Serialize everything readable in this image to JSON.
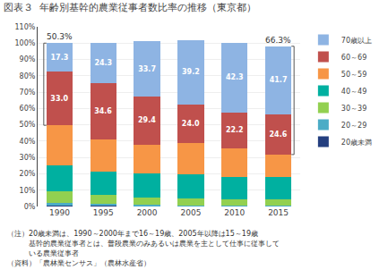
{
  "chart_data": {
    "type": "bar",
    "stacked": true,
    "title": "図表３  年齢別基幹的農業従事者数比率の推移（東京都）",
    "categories": [
      "1990",
      "1995",
      "2000",
      "2005",
      "2010",
      "2015"
    ],
    "series": [
      {
        "name": "20歳未満",
        "color": "#243f7f",
        "values": [
          0.4,
          0.3,
          0.2,
          0.1,
          0.1,
          0.1
        ]
      },
      {
        "name": "20～29",
        "color": "#4bacc6",
        "values": [
          1.8,
          1.3,
          0.8,
          0.6,
          0.5,
          0.5
        ]
      },
      {
        "name": "30～39",
        "color": "#92d050",
        "values": [
          6.9,
          5.6,
          4.7,
          4.3,
          3.7,
          3.8
        ]
      },
      {
        "name": "40～49",
        "color": "#00b0a0",
        "values": [
          15.9,
          14.3,
          14.7,
          14.8,
          13.5,
          13.8
        ]
      },
      {
        "name": "50～59",
        "color": "#f79646",
        "values": [
          24.7,
          19.6,
          17.5,
          18.8,
          17.7,
          13.6
        ]
      },
      {
        "name": "60～69",
        "color": "#c0504d",
        "values": [
          33.0,
          34.6,
          29.4,
          24.0,
          22.2,
          24.6
        ],
        "value_labels": [
          "33.0",
          "34.6",
          "29.4",
          "24.0",
          "22.2",
          "24.6"
        ],
        "data_labels": true
      },
      {
        "name": "70歳以上",
        "color": "#8eb4e3",
        "values": [
          17.3,
          24.3,
          33.7,
          39.2,
          42.3,
          41.7
        ],
        "data_labels": true
      }
    ],
    "ylim": [
      0,
      110
    ],
    "yticks": [
      {
        "value": 0,
        "label": "0%"
      },
      {
        "value": 10,
        "label": "10%"
      },
      {
        "value": 20,
        "label": "20%"
      },
      {
        "value": 30,
        "label": "30%"
      },
      {
        "value": 40,
        "label": "40%"
      },
      {
        "value": 50,
        "label": "50%"
      },
      {
        "value": 60,
        "label": "60%"
      },
      {
        "value": 70,
        "label": "70%"
      },
      {
        "value": 80,
        "label": "80%"
      },
      {
        "value": 90,
        "label": "90%"
      },
      {
        "value": 100,
        "label": "100%"
      },
      {
        "value": 110,
        "label": "110%"
      }
    ],
    "grid": true,
    "legend": "right",
    "annotations": [
      {
        "text": "50.3%",
        "category": "1990",
        "series": [
          "60～69",
          "70歳以上"
        ]
      },
      {
        "text": "66.3%",
        "category": "2015",
        "series": [
          "60～69",
          "70歳以上"
        ]
      }
    ],
    "notes": [
      "（注）20歳未満は、1990～2000年まで16～19歳、2005年以降は15～19歳",
      "　　　基幹的農業従事者とは、普段農業のみあるいは農業を主として仕事に従事して",
      "　　　いる農業従事者",
      "（資料）「農林業センサス」（農林水産省）"
    ]
  }
}
